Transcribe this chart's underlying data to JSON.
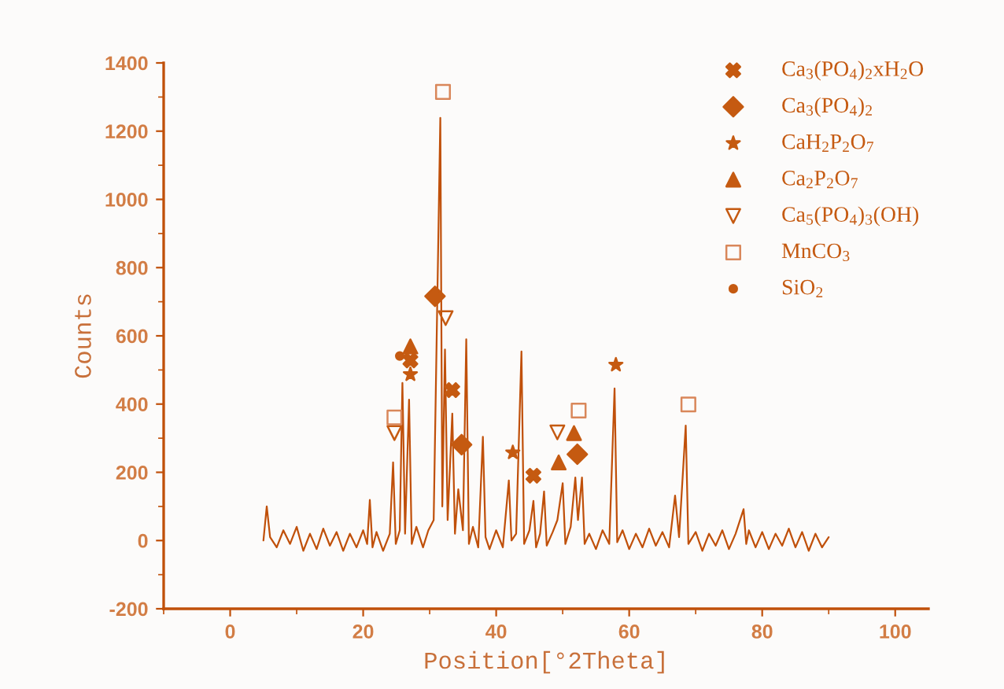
{
  "chart_data": {
    "type": "line",
    "xlabel": "Position[°2Theta]",
    "ylabel": "Counts",
    "xlim": [
      -10,
      105
    ],
    "ylim": [
      -200,
      1400
    ],
    "xticks": [
      0,
      20,
      40,
      60,
      80,
      100
    ],
    "yticks": [
      -200,
      0,
      200,
      400,
      600,
      800,
      1000,
      1200,
      1400
    ],
    "grid": false,
    "legend": "top right",
    "series": [
      {
        "color": "#c0500a",
        "x": [
          5,
          5.5,
          6,
          7,
          8,
          9,
          10,
          11,
          12,
          13,
          14,
          15,
          16,
          17,
          18,
          19,
          20,
          20.6,
          21,
          21.4,
          22,
          23,
          24,
          24.5,
          24.9,
          25.5,
          25.9,
          26.3,
          26.9,
          27.3,
          28,
          29,
          29.8,
          30.6,
          31.1,
          31.6,
          31.9,
          32.3,
          32.7,
          33.4,
          33.8,
          34.3,
          35.0,
          35.5,
          35.9,
          36.5,
          37.3,
          38.0,
          38.4,
          39,
          40,
          41,
          41.9,
          42.3,
          43,
          43.8,
          44.2,
          45,
          45.6,
          46,
          46.6,
          47.2,
          47.6,
          48.5,
          49.2,
          50.0,
          50.4,
          51.2,
          51.9,
          52.3,
          52.9,
          53.3,
          54,
          55,
          56,
          57,
          57.8,
          58.2,
          59,
          60,
          61,
          62,
          63,
          64,
          65,
          66,
          66.9,
          67.5,
          68.5,
          68.9,
          70,
          71,
          72,
          73,
          74,
          75,
          76,
          77.2,
          77.6,
          78,
          79,
          80,
          81,
          82,
          83,
          84,
          85,
          86,
          87,
          88,
          89,
          90
        ],
        "values": [
          0,
          100,
          10,
          -20,
          30,
          -10,
          40,
          -30,
          20,
          -25,
          35,
          -15,
          25,
          -30,
          20,
          -20,
          30,
          -10,
          119,
          -20,
          25,
          -30,
          20,
          229,
          -10,
          30,
          462,
          20,
          413,
          -10,
          40,
          -20,
          30,
          60,
          650,
          1239,
          100,
          560,
          60,
          372,
          20,
          150,
          30,
          590,
          -10,
          40,
          -20,
          304,
          10,
          -25,
          30,
          -20,
          176,
          0,
          20,
          554,
          -10,
          30,
          116,
          -20,
          20,
          144,
          -15,
          25,
          60,
          168,
          -10,
          40,
          185,
          60,
          185,
          -10,
          20,
          -25,
          30,
          -10,
          446,
          -5,
          30,
          -25,
          20,
          -20,
          35,
          -15,
          25,
          -20,
          132,
          10,
          337,
          -10,
          25,
          -30,
          20,
          -15,
          30,
          -25,
          20,
          92,
          -10,
          30,
          -20,
          25,
          -25,
          20,
          -15,
          35,
          -20,
          25,
          -30,
          20,
          -20,
          10
        ]
      },
      {
        "type": "scatter",
        "name": "Ca$_{3}$(PO$_{4}$)$_{2}$xH$_{2}$O",
        "color": "#c55a11",
        "marker": "cross",
        "x": [
          27.1,
          33.4,
          45.6
        ],
        "values": [
          528,
          441,
          190
        ]
      },
      {
        "type": "scatter",
        "name": "Ca$_{3}$(PO$_{4}$)$_{2}$",
        "color": "#c55a11",
        "marker": "diamond",
        "x": [
          30.8,
          34.8,
          52.2
        ],
        "values": [
          716,
          281,
          253
        ]
      },
      {
        "type": "scatter",
        "name": "CaH$_{2}$P$_{2}$O$_{7}$",
        "color": "#c55a11",
        "marker": "star",
        "x": [
          27.1,
          42.5,
          58.0
        ],
        "values": [
          487,
          258,
          515
        ]
      },
      {
        "type": "scatter",
        "name": "Ca$_{2}$P$_{2}$O$_{7}$",
        "color": "#c55a11",
        "x": [
          27.1,
          49.4,
          51.7
        ],
        "values": [
          569,
          229,
          315
        ]
      },
      {
        "type": "scatter",
        "name": "Ca$_{5}$(PO$_{4}$)$_{3}$(OH)",
        "color": "#c55a11",
        "marker": "triangle",
        "x": [
          24.7,
          32.4,
          49.2
        ],
        "values": [
          315,
          652,
          317
        ]
      },
      {
        "type": "scatter",
        "name": "MnCO$_{3}$",
        "color": "#d9875a",
        "marker": "square",
        "x": [
          24.7,
          32.0,
          52.4,
          68.9
        ],
        "values": [
          361,
          1315,
          381,
          399
        ]
      },
      {
        "type": "scatter",
        "name": "SiO$_{2}$",
        "color": "#c55a11",
        "marker": "circle",
        "x": [
          25.5
        ],
        "values": [
          541
        ]
      }
    ]
  }
}
